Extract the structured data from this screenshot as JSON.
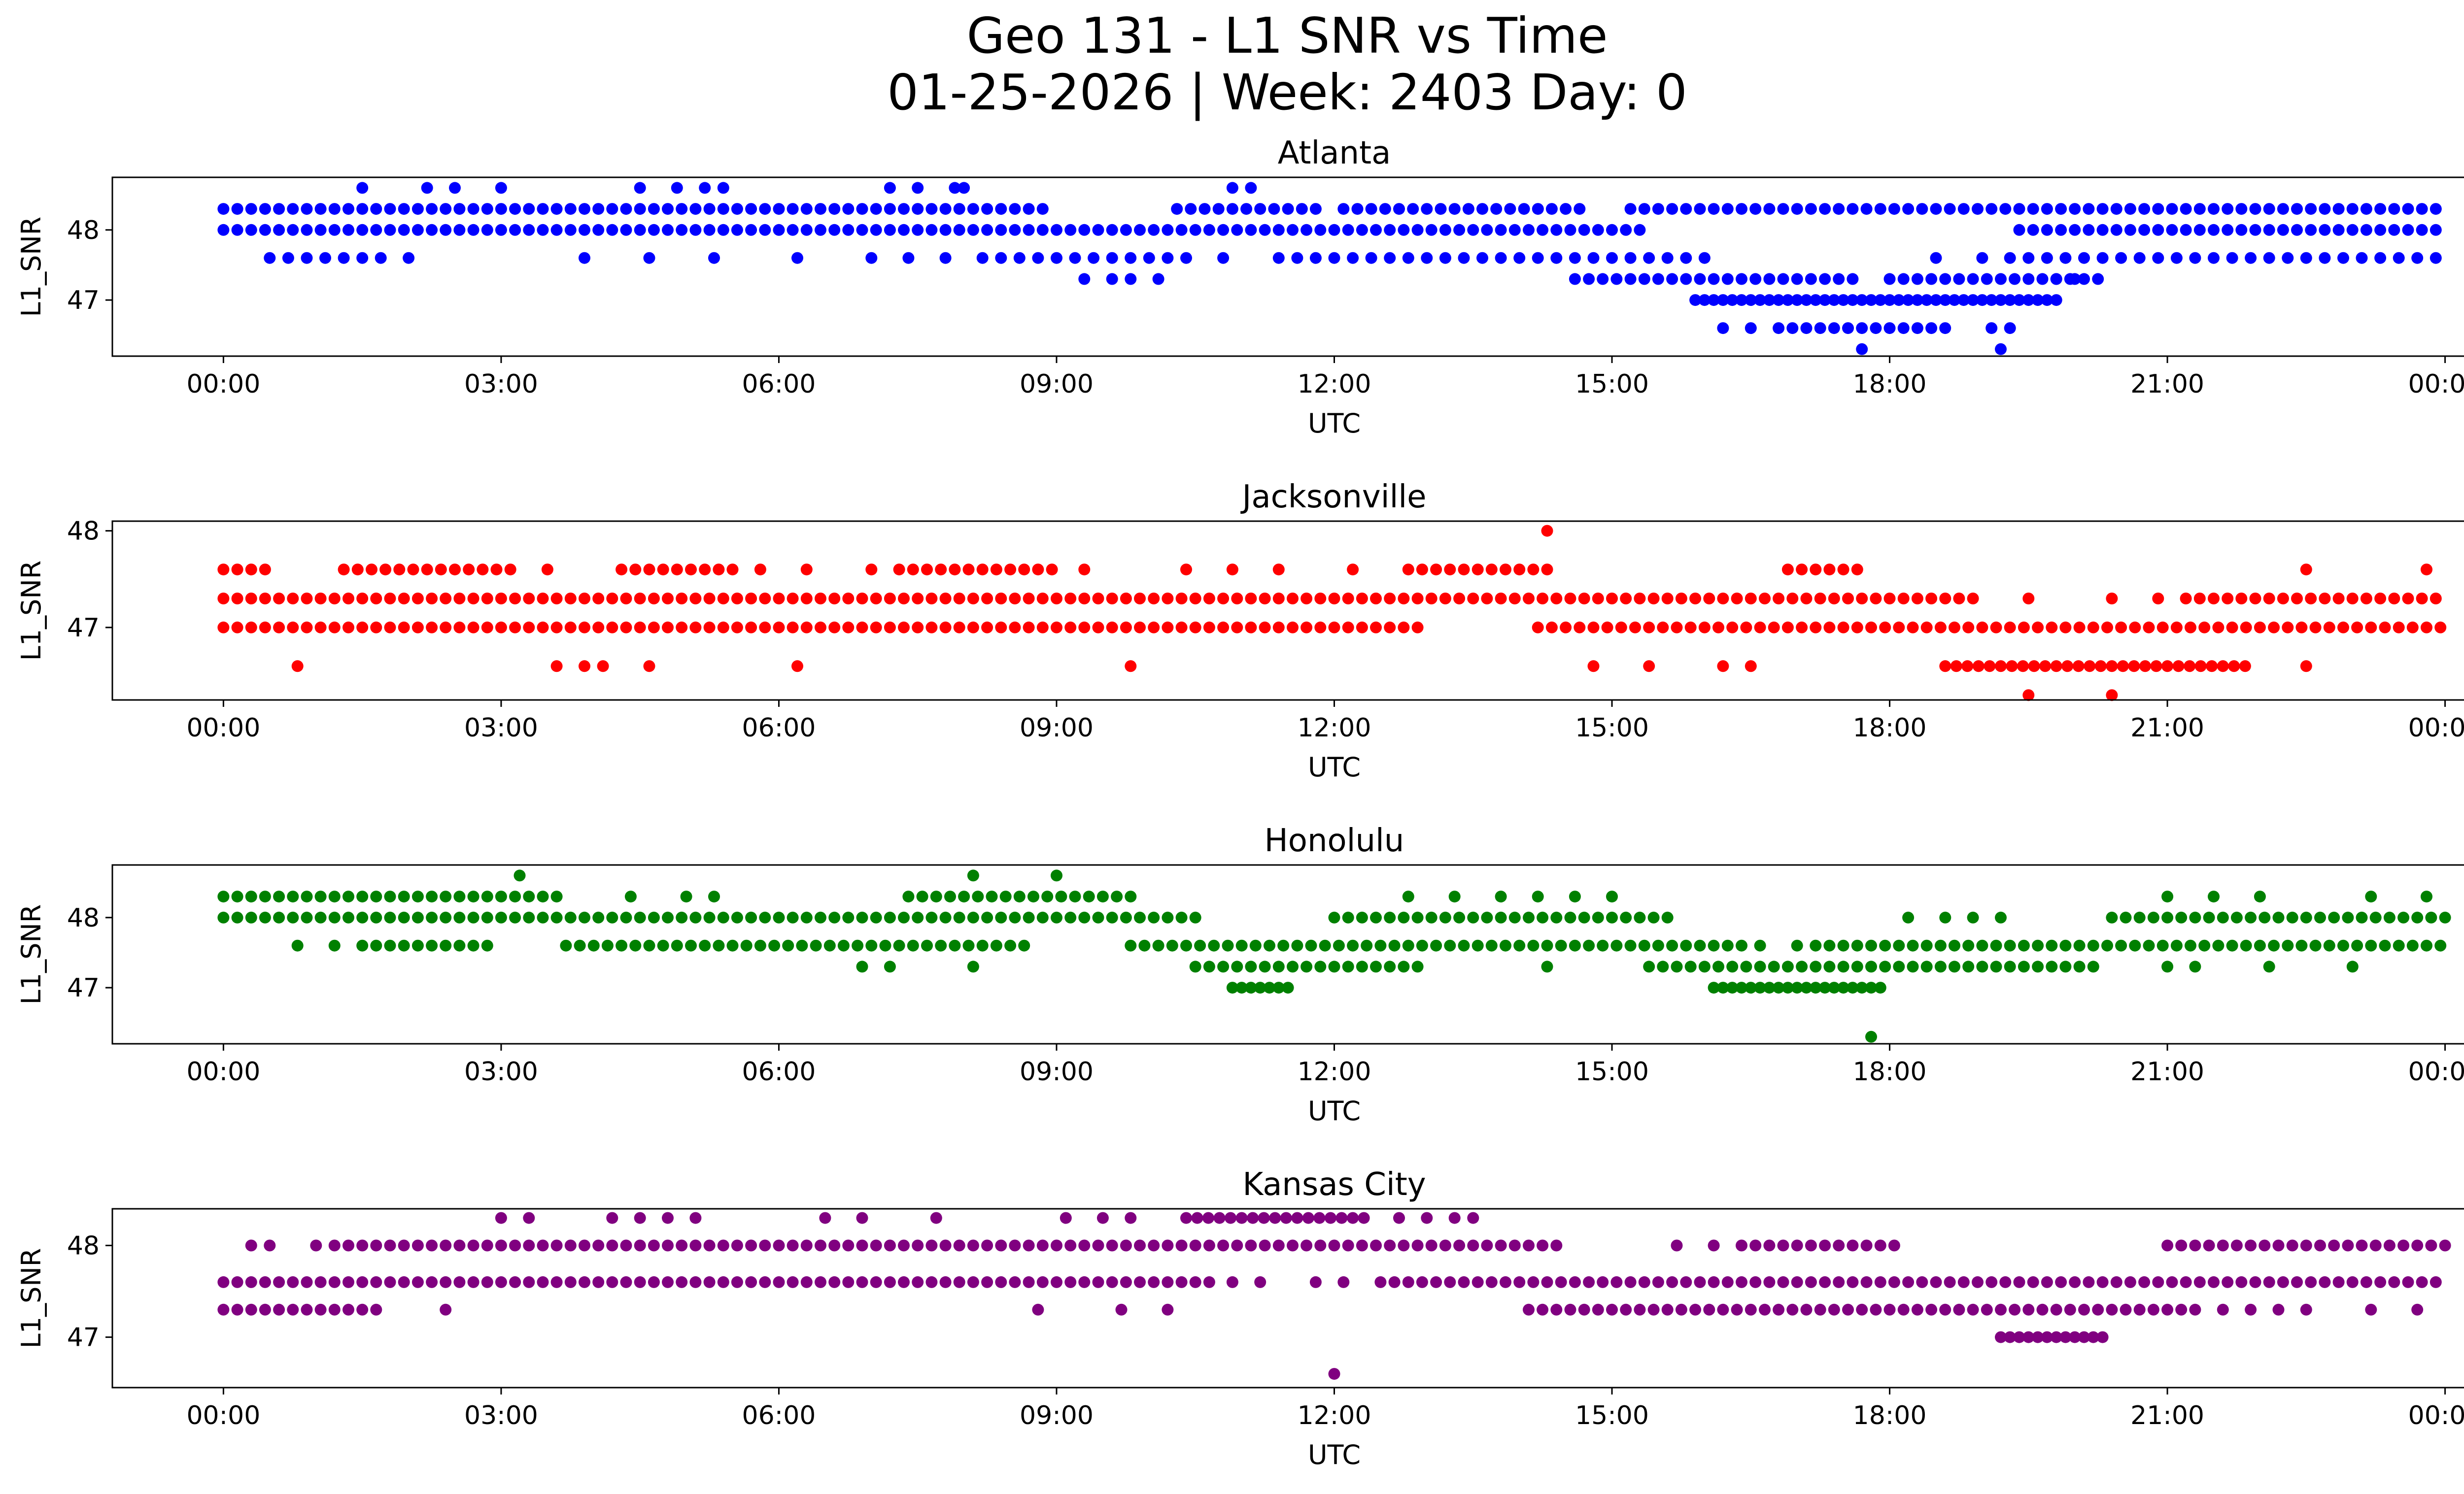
{
  "chart_data": {
    "type": "scatter",
    "title": "Geo 131 - L1 SNR vs Time",
    "subtitle": "01-25-2026 | Week: 2403 Day: 0",
    "xlabel": "UTC",
    "ylabel": "L1_SNR",
    "x_units": "hours UTC",
    "xlim": [
      -1.2,
      25.2
    ],
    "x_ticks": [
      0,
      3,
      6,
      9,
      12,
      15,
      18,
      21,
      24
    ],
    "x_tick_labels": [
      "00:00",
      "03:00",
      "06:00",
      "09:00",
      "12:00",
      "15:00",
      "18:00",
      "21:00",
      "00:00"
    ],
    "panels": [
      {
        "name": "Atlanta",
        "color": "#0000ff",
        "ylim": [
          46.2,
          48.75
        ],
        "y_ticks": [
          47,
          48
        ],
        "y_tick_labels": [
          "47",
          "48"
        ],
        "series": [
          {
            "y": 48.3,
            "segments": [
              [
                0,
                8.9
              ],
              [
                10.3,
                11.8
              ],
              [
                12.1,
                14.7
              ],
              [
                15.2,
                24
              ]
            ],
            "gap": 0.15
          },
          {
            "y": 48.0,
            "segments": [
              [
                0,
                15.3
              ],
              [
                19.4,
                24
              ]
            ],
            "gap": 0.15
          },
          {
            "y": 47.6,
            "segments": [
              [
                0.5,
                1.5
              ],
              [
                8.2,
                10.5
              ],
              [
                11.4,
                16.0
              ],
              [
                19.3,
                24
              ]
            ],
            "gap": 0.2
          },
          {
            "y": 47.3,
            "segments": [
              [
                14.6,
                17.6
              ],
              [
                18.0,
                20.3
              ]
            ],
            "gap": 0.15
          },
          {
            "y": 47.0,
            "segments": [
              [
                15.9,
                19.8
              ]
            ],
            "gap": 0.1
          },
          {
            "y": 46.6,
            "segments": [
              [
                16.8,
                18.6
              ]
            ],
            "gap": 0.15
          },
          {
            "y": 48.6,
            "points": [
              1.5,
              2.2,
              2.5,
              3.0,
              4.5,
              4.9,
              5.2,
              5.4,
              7.2,
              7.5,
              7.9,
              10.9,
              11.1
            ]
          },
          {
            "y": 47.6,
            "points": [
              1.7,
              2.0,
              3.9,
              4.6,
              5.3,
              6.2,
              7.0,
              7.4,
              7.8,
              10.8,
              18.5,
              19.0
            ]
          },
          {
            "y": 47.3,
            "points": [
              9.3,
              9.6,
              9.8,
              10.1,
              19.8,
              20.0
            ]
          },
          {
            "y": 48.6,
            "points": [
              8.0
            ]
          },
          {
            "y": 46.6,
            "points": [
              16.2,
              16.5,
              19.1,
              19.3
            ]
          },
          {
            "y": 46.3,
            "points": [
              17.7,
              19.2
            ]
          }
        ]
      },
      {
        "name": "Jacksonville",
        "color": "#ff0000",
        "ylim": [
          46.25,
          48.1
        ],
        "y_ticks": [
          47,
          48
        ],
        "y_tick_labels": [
          "47",
          "48"
        ],
        "series": [
          {
            "y": 47.3,
            "segments": [
              [
                0,
                18.9
              ],
              [
                21.2,
                24
              ]
            ],
            "gap": 0.15
          },
          {
            "y": 47.0,
            "segments": [
              [
                0,
                13.0
              ],
              [
                14.2,
                24
              ]
            ],
            "gap": 0.15
          },
          {
            "y": 47.6,
            "segments": [
              [
                0,
                0.5
              ],
              [
                1.3,
                3.2
              ],
              [
                4.3,
                5.5
              ],
              [
                7.3,
                9.0
              ],
              [
                12.8,
                14.3
              ],
              [
                16.9,
                17.7
              ]
            ],
            "gap": 0.15
          },
          {
            "y": 46.6,
            "segments": [
              [
                18.6,
                21.9
              ]
            ],
            "gap": 0.12
          },
          {
            "y": 47.6,
            "points": [
              3.5,
              5.8,
              6.3,
              7.0,
              9.3,
              10.4,
              10.9,
              11.4,
              12.2,
              22.5,
              23.8
            ]
          },
          {
            "y": 48.0,
            "points": [
              14.3
            ]
          },
          {
            "y": 46.6,
            "points": [
              0.8,
              3.6,
              3.9,
              4.1,
              4.6,
              6.2,
              9.8,
              14.8,
              15.4,
              16.2,
              16.5,
              22.5
            ]
          },
          {
            "y": 47.3,
            "points": [
              19.5,
              20.4,
              20.9
            ]
          },
          {
            "y": 46.3,
            "points": [
              19.5,
              20.4
            ]
          }
        ]
      },
      {
        "name": "Honolulu",
        "color": "#008000",
        "ylim": [
          46.2,
          48.75
        ],
        "y_ticks": [
          47,
          48
        ],
        "y_tick_labels": [
          "47",
          "48"
        ],
        "series": [
          {
            "y": 48.3,
            "segments": [
              [
                0,
                3.6
              ],
              [
                7.4,
                9.8
              ]
            ],
            "gap": 0.15
          },
          {
            "y": 48.0,
            "segments": [
              [
                0,
                10.6
              ],
              [
                12.0,
                15.7
              ],
              [
                20.4,
                24
              ]
            ],
            "gap": 0.15
          },
          {
            "y": 47.6,
            "segments": [
              [
                1.5,
                2.9
              ],
              [
                3.7,
                8.7
              ],
              [
                9.8,
                16.4
              ],
              [
                17.2,
                24
              ]
            ],
            "gap": 0.15
          },
          {
            "y": 47.3,
            "segments": [
              [
                10.5,
                13.0
              ],
              [
                15.4,
                20.3
              ]
            ],
            "gap": 0.15
          },
          {
            "y": 47.0,
            "segments": [
              [
                10.9,
                11.5
              ],
              [
                16.1,
                17.9
              ]
            ],
            "gap": 0.1
          },
          {
            "y": 48.6,
            "points": [
              3.2,
              8.1,
              9.0
            ]
          },
          {
            "y": 48.3,
            "points": [
              4.4,
              5.0,
              5.3,
              12.8,
              13.3,
              13.8,
              14.2,
              14.6,
              15.0,
              21.0,
              21.5,
              22.0,
              23.2,
              23.8
            ]
          },
          {
            "y": 48.0,
            "points": [
              18.2,
              18.6,
              18.9,
              19.2
            ]
          },
          {
            "y": 47.6,
            "points": [
              0.8,
              1.2,
              16.6,
              17.0
            ]
          },
          {
            "y": 47.3,
            "points": [
              6.9,
              7.2,
              8.1,
              14.3,
              21.0,
              21.3,
              22.1,
              23.0
            ]
          },
          {
            "y": 46.3,
            "points": [
              17.8
            ]
          }
        ]
      },
      {
        "name": "Kansas City",
        "color": "#800080",
        "ylim": [
          46.45,
          48.4
        ],
        "y_ticks": [
          47,
          48
        ],
        "y_tick_labels": [
          "47",
          "48"
        ],
        "series": [
          {
            "y": 47.6,
            "segments": [
              [
                0,
                10.7
              ],
              [
                12.5,
                24
              ]
            ],
            "gap": 0.15
          },
          {
            "y": 47.3,
            "segments": [
              [
                0,
                1.7
              ],
              [
                14.1,
                21.3
              ]
            ],
            "gap": 0.15
          },
          {
            "y": 48.0,
            "segments": [
              [
                1.2,
                14.5
              ],
              [
                16.4,
                18.1
              ],
              [
                21.0,
                24
              ]
            ],
            "gap": 0.15
          },
          {
            "y": 48.3,
            "segments": [
              [
                10.4,
                12.4
              ]
            ],
            "gap": 0.12
          },
          {
            "y": 47.0,
            "segments": [
              [
                19.2,
                20.3
              ]
            ],
            "gap": 0.1
          },
          {
            "y": 48.3,
            "points": [
              3.0,
              3.3,
              4.2,
              4.5,
              4.8,
              5.1,
              6.5,
              6.9,
              7.7,
              9.1,
              9.5,
              9.8,
              12.7,
              13.0,
              13.3,
              13.5
            ]
          },
          {
            "y": 48.0,
            "points": [
              0.3,
              0.5,
              1.0,
              15.7,
              16.1
            ]
          },
          {
            "y": 47.3,
            "points": [
              2.4,
              8.8,
              9.7,
              10.2,
              21.6,
              21.9,
              22.2,
              22.5,
              23.2,
              23.7
            ]
          },
          {
            "y": 47.6,
            "points": [
              10.9,
              11.2,
              11.8,
              12.1
            ]
          },
          {
            "y": 46.6,
            "points": [
              12.0
            ]
          }
        ]
      }
    ]
  }
}
